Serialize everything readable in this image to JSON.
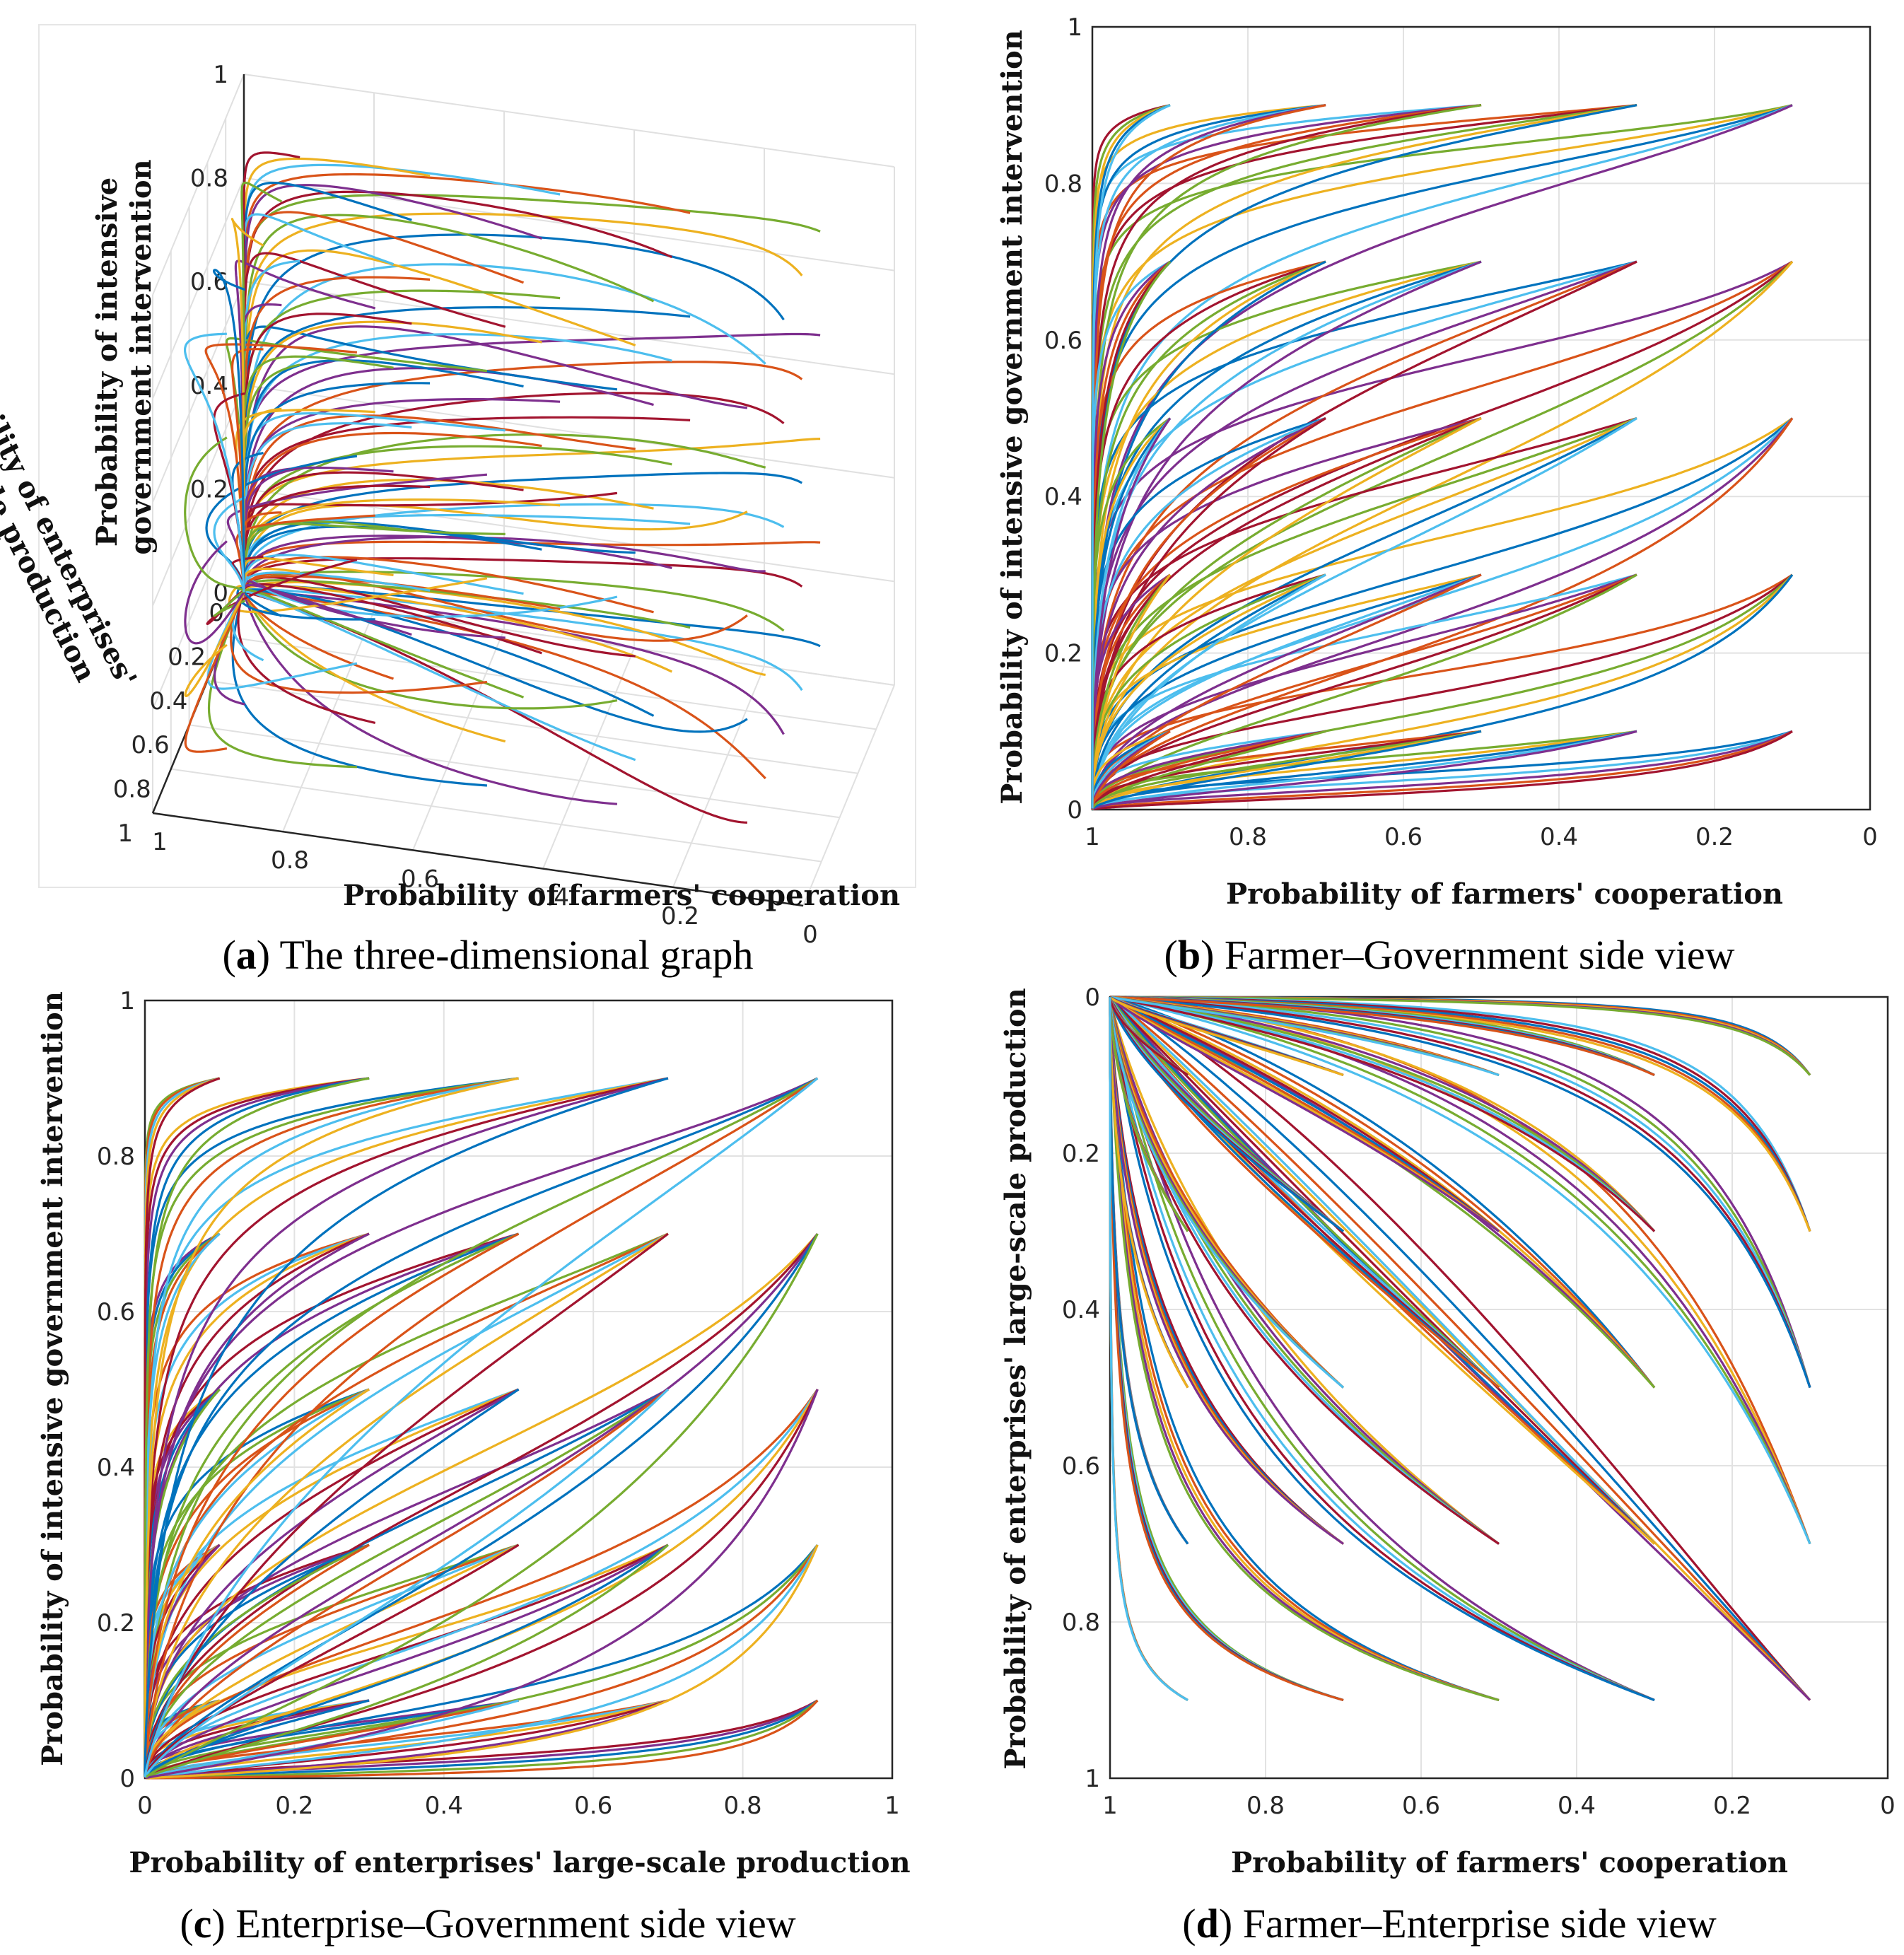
{
  "palette": [
    "#0072BD",
    "#D95319",
    "#EDB120",
    "#7E2F8E",
    "#77AC30",
    "#4DBEEE",
    "#A2142F"
  ],
  "panels": [
    {
      "id": "a",
      "caption_letter": "a",
      "caption_text": " The three-dimensional graph",
      "chart_data": {
        "type": "line",
        "projection": "3d",
        "title": "",
        "xlabel": "Probability of farmers' cooperation",
        "ylabel": "Probability of enterprises' large-scale production",
        "zlabel": "Probability of intensive government intervention",
        "x_ticks": [
          "1",
          "0.8",
          "0.6",
          "0.4",
          "0.2",
          "0"
        ],
        "y_ticks": [
          "0",
          "0.2",
          "0.4",
          "0.6",
          "0.8",
          "1"
        ],
        "z_ticks": [
          "0",
          "0.2",
          "0.4",
          "0.6",
          "0.8",
          "1"
        ],
        "xlim": [
          0,
          1
        ],
        "ylim": [
          0,
          1
        ],
        "zlim": [
          0,
          1
        ],
        "grid": true,
        "initial_x": [
          0.1,
          0.3,
          0.5,
          0.7,
          0.9
        ],
        "initial_y": [
          0.1,
          0.3,
          0.5,
          0.7,
          0.9
        ],
        "initial_z": [
          0.1,
          0.3,
          0.5,
          0.7,
          0.9
        ],
        "equilibrium": {
          "x": 1,
          "y": 0,
          "z": 0
        }
      }
    },
    {
      "id": "b",
      "caption_letter": "b",
      "caption_text": " Farmer–Government side view",
      "chart_data": {
        "type": "line",
        "title": "",
        "xlabel": "Probability of farmers' cooperation",
        "ylabel": "Probability of intensive  government intervention",
        "x_ticks": [
          "1",
          "0.8",
          "0.6",
          "0.4",
          "0.2",
          "0"
        ],
        "y_ticks": [
          "0",
          "0.2",
          "0.4",
          "0.6",
          "0.8",
          "1"
        ],
        "xlim": [
          1,
          0
        ],
        "ylim": [
          0,
          1
        ],
        "grid": true,
        "initial_x": [
          0.1,
          0.3,
          0.5,
          0.7,
          0.9
        ],
        "initial_y": [
          0.1,
          0.3,
          0.5,
          0.7,
          0.9
        ],
        "equilibrium": {
          "x": 1,
          "y": 0
        }
      }
    },
    {
      "id": "c",
      "caption_letter": "c",
      "caption_text": " Enterprise–Government side view",
      "chart_data": {
        "type": "line",
        "title": "",
        "xlabel": "Probability of enterprises' large-scale production",
        "ylabel": "Probability of intensive government intervention",
        "x_ticks": [
          "0",
          "0.2",
          "0.4",
          "0.6",
          "0.8",
          "1"
        ],
        "y_ticks": [
          "0",
          "0.2",
          "0.4",
          "0.6",
          "0.8",
          "1"
        ],
        "xlim": [
          0,
          1
        ],
        "ylim": [
          0,
          1
        ],
        "grid": true,
        "initial_x": [
          0.1,
          0.3,
          0.5,
          0.7,
          0.9
        ],
        "initial_y": [
          0.1,
          0.3,
          0.5,
          0.7,
          0.9
        ],
        "equilibrium": {
          "x": 0,
          "y": 0
        }
      }
    },
    {
      "id": "d",
      "caption_letter": "d",
      "caption_text": " Farmer–Enterprise side view",
      "chart_data": {
        "type": "line",
        "title": "",
        "xlabel": "Probability of farmers' cooperation",
        "ylabel": "Probability of enterprises' large-scale production",
        "x_ticks": [
          "1",
          "0.8",
          "0.6",
          "0.4",
          "0.2",
          "0"
        ],
        "y_ticks": [
          "0",
          "0.2",
          "0.4",
          "0.6",
          "0.8",
          "1"
        ],
        "xlim": [
          1,
          0
        ],
        "ylim": [
          0,
          1
        ],
        "y_reversed": true,
        "grid": true,
        "initial_x": [
          0.1,
          0.3,
          0.5,
          0.7,
          0.9
        ],
        "initial_y": [
          0.1,
          0.3,
          0.5,
          0.7,
          0.9
        ],
        "equilibrium": {
          "x": 1,
          "y": 0
        }
      }
    }
  ]
}
